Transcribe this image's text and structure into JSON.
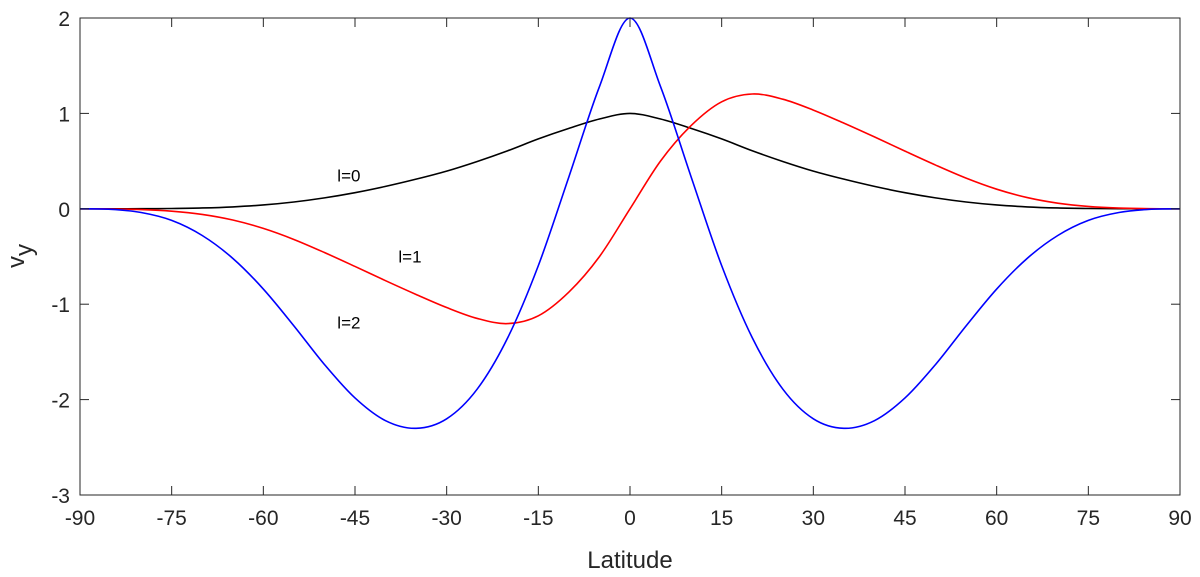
{
  "chart_data": {
    "type": "line",
    "xlabel": "Latitude",
    "ylabel": {
      "main": "v",
      "subscript": "y"
    },
    "xlim": [
      -90,
      90
    ],
    "ylim": [
      -3,
      2
    ],
    "xticks": [
      -90,
      -75,
      -60,
      -45,
      -30,
      -15,
      0,
      15,
      30,
      45,
      60,
      75,
      90
    ],
    "yticks": [
      -3,
      -2,
      -1,
      0,
      1,
      2
    ],
    "xtick_labels": [
      "-90",
      "-75",
      "-60",
      "-45",
      "-30",
      "-15",
      "0",
      "15",
      "30",
      "45",
      "60",
      "75",
      "90"
    ],
    "ytick_labels": [
      "-3",
      "-2",
      "-1",
      "0",
      "1",
      "2"
    ],
    "grid": false,
    "box": true,
    "series": [
      {
        "id": "l0",
        "color": "#000000",
        "label": {
          "text": "l=0",
          "x": -46,
          "y": 0.35
        },
        "x": [
          -90,
          -85,
          -80,
          -75,
          -70,
          -65,
          -60,
          -55,
          -50,
          -45,
          -40,
          -35,
          -30,
          -25,
          -20,
          -15,
          -10,
          -5,
          0,
          5,
          10,
          15,
          20,
          25,
          30,
          35,
          40,
          45,
          50,
          55,
          60,
          65,
          70,
          75,
          80,
          85,
          90
        ],
        "y": [
          0,
          0.0002,
          0.0009,
          0.0032,
          0.0087,
          0.02,
          0.0401,
          0.0712,
          0.1144,
          0.169,
          0.2349,
          0.3107,
          0.3951,
          0.4962,
          0.6086,
          0.7327,
          0.8429,
          0.941,
          1.0,
          0.941,
          0.8429,
          0.7327,
          0.6086,
          0.4962,
          0.3951,
          0.3107,
          0.2349,
          0.169,
          0.1144,
          0.0712,
          0.0401,
          0.02,
          0.0087,
          0.0032,
          0.0009,
          0.0002,
          0
        ]
      },
      {
        "id": "l1",
        "color": "#ff0000",
        "label": {
          "text": "l=1",
          "x": -36,
          "y": -0.5
        },
        "x": [
          -90,
          -85,
          -80,
          -75,
          -70,
          -65,
          -60,
          -55,
          -50,
          -45,
          -40,
          -35,
          -30,
          -25,
          -20,
          -15,
          -10,
          -5,
          0,
          5,
          10,
          15,
          20,
          25,
          30,
          35,
          40,
          45,
          50,
          55,
          60,
          65,
          70,
          75,
          80,
          85,
          90
        ],
        "y": [
          0,
          -0.0015,
          -0.0081,
          -0.0249,
          -0.0589,
          -0.1175,
          -0.2056,
          -0.3214,
          -0.4584,
          -0.6043,
          -0.7536,
          -0.8979,
          -1.0349,
          -1.1491,
          -1.2034,
          -1.1216,
          -0.8725,
          -0.5011,
          -0.0,
          0.5011,
          0.8725,
          1.1216,
          1.2034,
          1.1491,
          1.0349,
          0.8979,
          0.7536,
          0.6043,
          0.4584,
          0.3214,
          0.2056,
          0.1175,
          0.0589,
          0.0249,
          0.0081,
          0.0015,
          0
        ]
      },
      {
        "id": "l2",
        "color": "#0000ff",
        "label": {
          "text": "l=2",
          "x": -46,
          "y": -1.19
        },
        "x": [
          -90,
          -85,
          -80,
          -75,
          -70,
          -65,
          -60,
          -55,
          -50,
          -45,
          -40,
          -35,
          -30,
          -25,
          -20,
          -15,
          -10,
          -5,
          0,
          5,
          10,
          15,
          20,
          25,
          30,
          35,
          40,
          45,
          50,
          55,
          60,
          65,
          70,
          75,
          80,
          85,
          90
        ],
        "y": [
          0,
          -0.0055,
          -0.039,
          -0.1215,
          -0.2799,
          -0.5193,
          -0.841,
          -1.2268,
          -1.632,
          -1.9827,
          -2.2208,
          -2.301,
          -2.2012,
          -1.8894,
          -1.3505,
          -0.5957,
          0.335,
          1.28,
          2.0,
          1.28,
          0.335,
          -0.5957,
          -1.3505,
          -1.8894,
          -2.2012,
          -2.301,
          -2.2208,
          -1.9827,
          -1.632,
          -1.2268,
          -0.841,
          -0.5193,
          -0.2799,
          -0.1215,
          -0.039,
          -0.0055,
          0
        ]
      }
    ]
  }
}
